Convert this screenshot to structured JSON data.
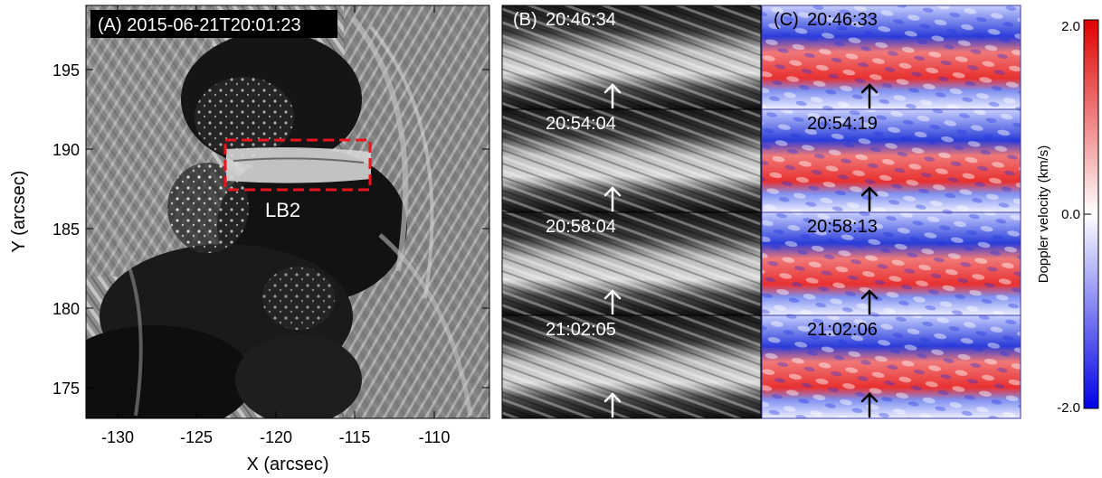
{
  "panel_a": {
    "title": "(A) 2015-06-21T20:01:23",
    "box_label": "LB2",
    "x_axis": {
      "label": "X (arcsec)",
      "ticks": [
        "-130",
        "-125",
        "-120",
        "-115",
        "-110"
      ]
    },
    "y_axis": {
      "label": "Y (arcsec)",
      "ticks": [
        "175",
        "180",
        "185",
        "190",
        "195"
      ]
    }
  },
  "panel_b": {
    "label": "(B)",
    "times": [
      "20:46:34",
      "20:54:04",
      "20:58:04",
      "21:02:05"
    ]
  },
  "panel_c": {
    "label": "(C)",
    "times": [
      "20:46:33",
      "20:54:19",
      "20:58:13",
      "21:02:06"
    ]
  },
  "colorbar": {
    "label": "Doppler velocity (km/s)",
    "ticks": [
      "2.0",
      "0.0",
      "-2.0"
    ],
    "colors": {
      "top": "#e00000",
      "mid": "#ffffff",
      "bottom": "#0000e8"
    }
  },
  "colors": {
    "box": "#e8141e",
    "frame_c": "#3a3aa8"
  }
}
